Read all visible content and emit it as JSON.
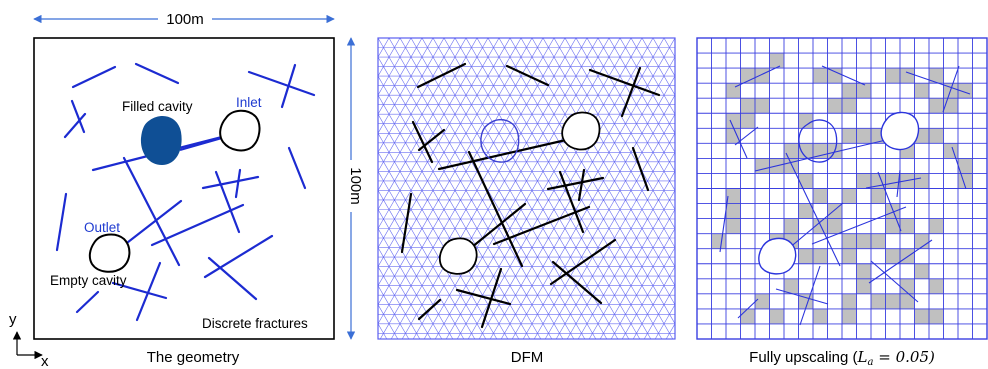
{
  "panels": {
    "geometry": {
      "caption": "The geometry",
      "dimension_top": "100m",
      "dimension_right": "100m",
      "axis_y": "y",
      "axis_x": "x",
      "labels": {
        "filled_cavity": "Filled cavity",
        "inlet": "Inlet",
        "outlet": "Outlet",
        "empty_cavity": "Empty cavity",
        "discrete_fractures": "Discrete fractures"
      }
    },
    "dfm": {
      "caption": "DFM"
    },
    "upscaling": {
      "caption_prefix": "Fully upscaling (",
      "caption_symbol": "L",
      "caption_subscript": "a",
      "caption_value": " = 0.05)"
    }
  },
  "colors": {
    "fracture_blue": "#1c2bd1",
    "label_blue": "#1f3bd0",
    "mesh_blue": "#5b5ff0",
    "filled_cavity": "#0f4f95",
    "black": "#000000",
    "dimension_blue": "#3b6fd6",
    "cell_gray": "#c0c0c0"
  }
}
